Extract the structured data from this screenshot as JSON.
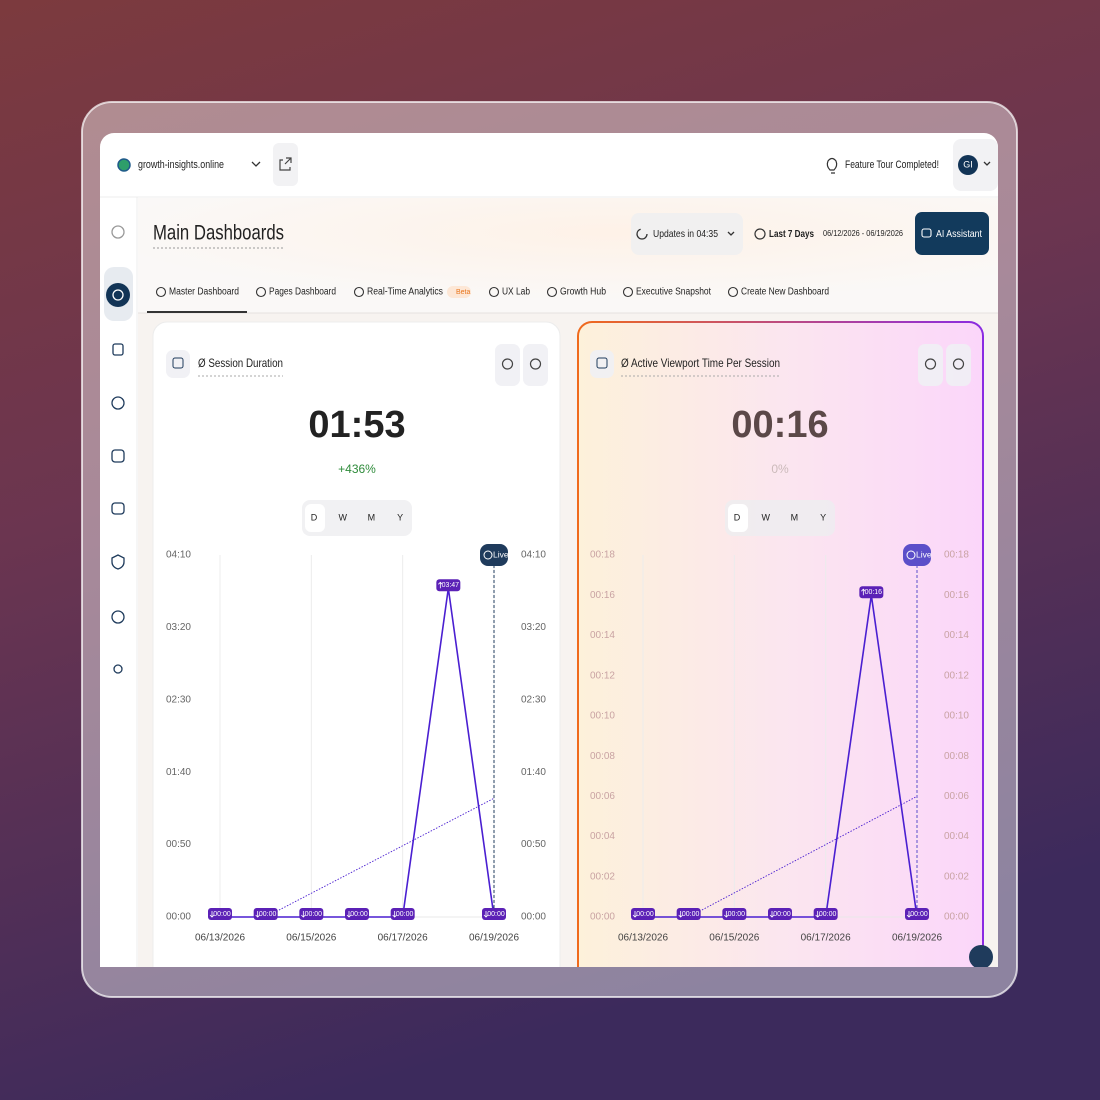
{
  "header": {
    "site": "growth-insights.online",
    "notice": "Feature Tour Completed!",
    "avatar": "GI"
  },
  "page": {
    "title": "Main Dashboards",
    "updates": "Updates in 04:35",
    "range_label": "Last 7 Days",
    "date_range": "06/12/2026 - 06/19/2026",
    "assistant": "AI Assistant"
  },
  "tabs": [
    "Master Dashboard",
    "Pages Dashboard",
    "Real-Time Analytics",
    "UX Lab",
    "Growth Hub",
    "Executive Snapshot",
    "Create New Dashboard"
  ],
  "tab_badge": "Beta",
  "chart_data": [
    {
      "type": "line",
      "title": "Ø Session Duration",
      "value": "01:53",
      "change": "+436%",
      "periods": [
        "D",
        "W",
        "M",
        "Y"
      ],
      "categories": [
        "06/13/2026",
        null,
        "06/15/2026",
        null,
        "06/17/2026",
        null,
        "06/19/2026"
      ],
      "values": [
        0,
        0,
        0,
        0,
        0,
        227,
        0
      ],
      "value_labels": [
        "00:00",
        "00:00",
        "00:00",
        "00:00",
        "00:00",
        "03:47",
        "00:00"
      ],
      "trend": [
        0,
        82
      ],
      "live_label": "Live",
      "color": "#4a1fd1",
      "ylim": [
        0,
        250
      ],
      "yticks": [
        {
          "value": 0,
          "label": "00:00"
        },
        {
          "value": 50,
          "label": "00:50"
        },
        {
          "value": 100,
          "label": "01:40"
        },
        {
          "value": 150,
          "label": "02:30"
        },
        {
          "value": 200,
          "label": "03:20"
        },
        {
          "value": 250,
          "label": "04:10"
        }
      ]
    },
    {
      "type": "line",
      "title": "Ø Active Viewport Time Per Session",
      "value": "00:16",
      "change": "0%",
      "periods": [
        "D",
        "W",
        "M",
        "Y"
      ],
      "categories": [
        "06/13/2026",
        null,
        "06/15/2026",
        null,
        "06/17/2026",
        null,
        "06/19/2026"
      ],
      "values": [
        0,
        0,
        0,
        0,
        0,
        16,
        0
      ],
      "value_labels": [
        "00:00",
        "00:00",
        "00:00",
        "00:00",
        "00:00",
        "00:16",
        "00:00"
      ],
      "trend": [
        0,
        6
      ],
      "live_label": "Live",
      "color": "#4a1fd1",
      "ylim": [
        0,
        18
      ],
      "yticks": [
        {
          "value": 0,
          "label": "00:00"
        },
        {
          "value": 2,
          "label": "00:02"
        },
        {
          "value": 4,
          "label": "00:04"
        },
        {
          "value": 6,
          "label": "00:06"
        },
        {
          "value": 8,
          "label": "00:08"
        },
        {
          "value": 10,
          "label": "00:10"
        },
        {
          "value": 12,
          "label": "00:12"
        },
        {
          "value": 14,
          "label": "00:14"
        },
        {
          "value": 16,
          "label": "00:16"
        },
        {
          "value": 18,
          "label": "00:18"
        }
      ]
    }
  ]
}
